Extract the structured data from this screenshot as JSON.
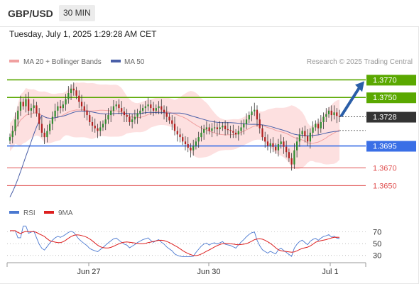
{
  "header": {
    "pair": "GBP/USD",
    "timeframe": "30 MIN"
  },
  "datetime": "Tuesday, July 1, 2025 1:29:28 AM CET",
  "credit": "Research © 2025 Trading Central",
  "legend": {
    "ma20": "MA 20 + Bollinger Bands",
    "ma50": "MA 50",
    "rsi": "RSI",
    "rsi_ma": "9MA"
  },
  "colors": {
    "green": "#5aa800",
    "blue": "#3a6fe6",
    "red": "#e05050",
    "candle_up": "#2e8b2e",
    "candle_down": "#b02020",
    "bb_fill": "#fde0e0",
    "ma20": "#f0a0a0",
    "ma50": "#4a5fa8",
    "current": "#333333",
    "arrow": "#2a5ea8",
    "rsi_line": "#4a78d0",
    "rsi_ma_line": "#dd2020"
  },
  "chart_data": [
    {
      "type": "candlestick",
      "x_labels": [
        "Jun 27",
        "Jun 30",
        "Jul 1"
      ],
      "ylim": [
        1.3635,
        1.378
      ],
      "levels": [
        {
          "value": 1.377,
          "label": "1.3770",
          "kind": "resistance"
        },
        {
          "value": 1.375,
          "label": "1.3750",
          "kind": "resistance"
        },
        {
          "value": 1.3695,
          "label": "1.3695",
          "kind": "pivot"
        },
        {
          "value": 1.367,
          "label": "1.3670",
          "kind": "support"
        },
        {
          "value": 1.365,
          "label": "1.3650",
          "kind": "support"
        }
      ],
      "current_price": {
        "value": 1.3728,
        "label": "1.3728"
      },
      "series": [
        {
          "name": "MA 20 + Bollinger Bands"
        },
        {
          "name": "MA 50"
        }
      ],
      "close": [
        1.3705,
        1.3712,
        1.3725,
        1.3735,
        1.3745,
        1.374,
        1.3748,
        1.3735,
        1.3738,
        1.3741,
        1.3732,
        1.372,
        1.371,
        1.3705,
        1.3712,
        1.372,
        1.3728,
        1.3735,
        1.374,
        1.3738,
        1.3742,
        1.3748,
        1.3755,
        1.376,
        1.3758,
        1.3752,
        1.3745,
        1.374,
        1.3735,
        1.373,
        1.3722,
        1.3718,
        1.3715,
        1.3712,
        1.3716,
        1.372,
        1.3725,
        1.373,
        1.3735,
        1.374,
        1.3742,
        1.3738,
        1.3734,
        1.373,
        1.3728,
        1.3722,
        1.3725,
        1.3728,
        1.3732,
        1.3735,
        1.3738,
        1.374,
        1.3742,
        1.3738,
        1.3735,
        1.3738,
        1.374,
        1.3736,
        1.3733,
        1.3728,
        1.3724,
        1.372,
        1.3712,
        1.3708,
        1.3705,
        1.37,
        1.3697,
        1.3693,
        1.369,
        1.3695,
        1.37,
        1.3705,
        1.371,
        1.3714,
        1.3716,
        1.3712,
        1.3715,
        1.3716,
        1.3714,
        1.3716,
        1.3718,
        1.3714,
        1.3713,
        1.3712,
        1.371,
        1.3708,
        1.3712,
        1.3716,
        1.372,
        1.3725,
        1.373,
        1.3734,
        1.3736,
        1.3725,
        1.3715,
        1.3705,
        1.37,
        1.3695,
        1.3698,
        1.3694,
        1.369,
        1.3697,
        1.37,
        1.3694,
        1.3688,
        1.3681,
        1.3674,
        1.369,
        1.37,
        1.3708,
        1.3712,
        1.3706,
        1.37,
        1.371,
        1.3716,
        1.372,
        1.3715,
        1.3722,
        1.3728,
        1.3731,
        1.3735,
        1.373,
        1.3733,
        1.3729,
        1.3728
      ],
      "rsi": {
        "yticks": [
          30,
          50,
          70
        ]
      }
    }
  ]
}
